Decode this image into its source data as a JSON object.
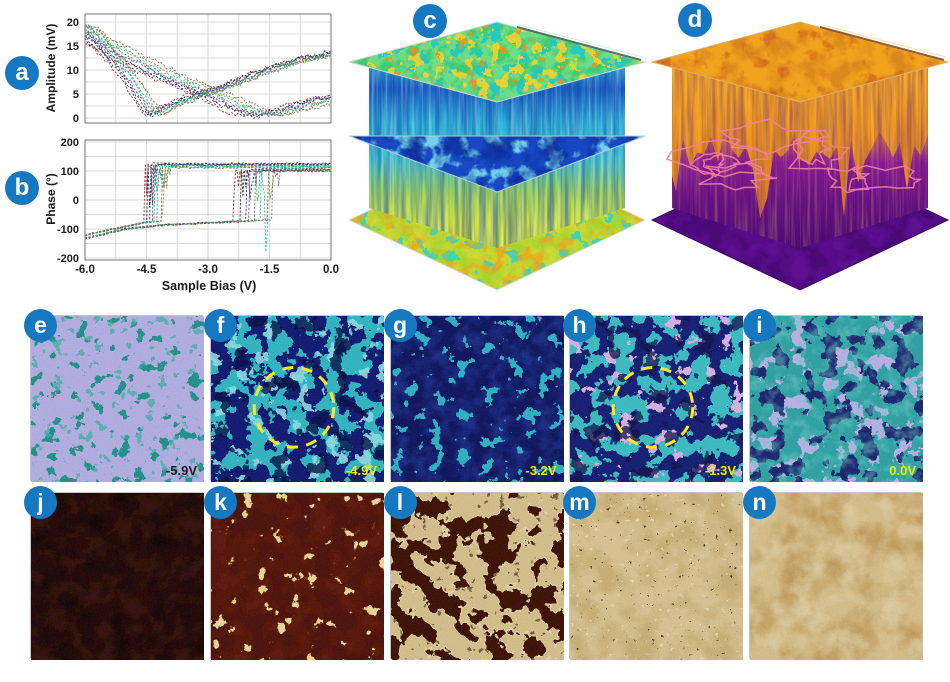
{
  "figure": {
    "type": "multi-panel scientific figure (scanning probe microscopy / PFM switching study)",
    "badge_color": "#1578c1",
    "badge_text_color": "#ffffff"
  },
  "badges": {
    "a": "a",
    "b": "b",
    "c": "c",
    "d": "d"
  },
  "chart_data": [
    {
      "id": "a",
      "type": "line",
      "panel": "a",
      "title": "",
      "xlabel": "",
      "ylabel": "Amplitude (mV)",
      "xlim": [
        -6,
        0
      ],
      "ylim": [
        0,
        20
      ],
      "xticks": [
        -6.0,
        -4.5,
        -3.0,
        -1.5,
        0.0
      ],
      "yticks": [
        0,
        5,
        10,
        15,
        20
      ],
      "grid": true,
      "legend": false,
      "n_cycles": 8,
      "series_colors": [
        "#8b2030",
        "#222222",
        "#26307f",
        "#7b3090",
        "#2f9e50",
        "#18b7b7",
        "#8f8f20",
        "#707070"
      ],
      "description": "PFM amplitude butterfly loops, ~8 overlapping bias sweep cycles",
      "branches": {
        "forward": [
          [
            -6,
            19
          ],
          [
            -5.5,
            13.5
          ],
          [
            -5,
            8.6
          ],
          [
            -4.7,
            4.4
          ],
          [
            -4.4,
            0.6
          ],
          [
            -4.1,
            2
          ],
          [
            -3.6,
            3.9
          ],
          [
            -3,
            5.6
          ],
          [
            -2.4,
            7.4
          ],
          [
            -1.8,
            9.4
          ],
          [
            -1.2,
            11.2
          ],
          [
            -0.6,
            12.5
          ],
          [
            0,
            13.6
          ]
        ],
        "reverse": [
          [
            -6,
            17.8
          ],
          [
            -5.4,
            15
          ],
          [
            -4.8,
            12.2
          ],
          [
            -4.2,
            9.6
          ],
          [
            -3.6,
            7.4
          ],
          [
            -3,
            5.4
          ],
          [
            -2.5,
            3.4
          ],
          [
            -2,
            1.4
          ],
          [
            -1.65,
            0.5
          ],
          [
            -1.3,
            1
          ],
          [
            -0.9,
            1.9
          ],
          [
            -0.5,
            2.9
          ],
          [
            0,
            4.3
          ]
        ]
      },
      "amplitude_minima_V": {
        "forward_branch": [
          -4.55,
          -4.1
        ],
        "reverse_branch": [
          -2.35,
          -1.45
        ]
      }
    },
    {
      "id": "b",
      "type": "line",
      "panel": "b",
      "title": "",
      "xlabel": "Sample Bias (V)",
      "ylabel": "Phase (°)",
      "xlim": [
        -6,
        0
      ],
      "ylim": [
        -200,
        200
      ],
      "xticks": [
        -6.0,
        -4.5,
        -3.0,
        -1.5,
        0.0
      ],
      "yticks": [
        -200,
        -100,
        0,
        100,
        200
      ],
      "grid": true,
      "legend": false,
      "n_cycles": 8,
      "series_colors": [
        "#8b2030",
        "#222222",
        "#26307f",
        "#7b3090",
        "#2f9e50",
        "#18b7b7",
        "#8f8f20",
        "#707070"
      ],
      "description": "PFM phase hysteresis loops; ~180 degree switching with two groups of coercive voltages",
      "branches": {
        "forward_low": [
          [
            -6,
            -122
          ],
          [
            -5.4,
            -102
          ],
          [
            -4.9,
            -88
          ],
          [
            -4.5,
            -77
          ],
          [
            -4.0,
            -70
          ]
        ],
        "reverse_low": [
          [
            -6,
            -133
          ],
          [
            -5,
            -100
          ],
          [
            -4,
            -85
          ],
          [
            -3,
            -79
          ],
          [
            -2,
            -72
          ],
          [
            -1.3,
            -68
          ]
        ],
        "forward_high_plateau": 119,
        "reverse_high_plateau": 103
      },
      "switch_voltage_range": {
        "forward": [
          -4.55,
          -4.1
        ],
        "reverse": [
          -2.35,
          -1.45
        ]
      }
    },
    {
      "id": "c",
      "type": "3d-slice-stack",
      "description": "3D rendering of spectroscopic data cube: three horizontal image slices (top green/teal with yellow-orange domains, middle blue, bottom yellow-green) connected by vertical cross-section walls with blue-to-green streaks",
      "colormap": [
        "#1b5fc6",
        "#2fb9dc",
        "#49d6d2",
        "#40cb72",
        "#d8e53c",
        "#ef8e1f"
      ]
    },
    {
      "id": "d",
      "type": "3d-volume",
      "description": "3D rendering of phase data cube: orange top surface, flame-like orange-to-purple switching front on walls, pink isosurface contour loops mid-volume, dark purple bottom slice",
      "colormap": [
        "#f6ac20",
        "#e8821a",
        "#8f1d96",
        "#4b0a6e"
      ],
      "contour_color": "#f07f9e"
    }
  ],
  "tiles": {
    "row1": [
      {
        "label": "e",
        "scan_label": "-5.9V",
        "scan_label_color": "#1c1c1c",
        "bg": "#b6b1e7",
        "circle": false,
        "spots": [
          {
            "color": "#1e948c",
            "freq": 0.07,
            "t": 0.655,
            "seed": 11
          },
          {
            "color": "#35b4a8",
            "freq": 0.095,
            "t": 0.67,
            "seed": 21,
            "op": 0.7
          }
        ]
      },
      {
        "label": "f",
        "scan_label": "-4.9V",
        "scan_label_color": "#f2ea00",
        "bg": "#0d1672",
        "circle": true,
        "spots": [
          {
            "color": "#2fb9c4",
            "freq": 0.052,
            "t": 0.505,
            "seed": 31
          },
          {
            "color": "#8fe2e6",
            "freq": 0.06,
            "t": 0.632,
            "seed": 32,
            "op": 0.9
          },
          {
            "color": "#060c45",
            "freq": 0.05,
            "t": 0.64,
            "seed": 33,
            "op": 0.8
          }
        ]
      },
      {
        "label": "g",
        "scan_label": "-3.2V",
        "scan_label_color": "#f2ea00",
        "bg": "#0a115e",
        "circle": false,
        "spots": [
          {
            "color": "#1b2f8f",
            "freq": 0.06,
            "t": 0.55,
            "seed": 42,
            "soft": true,
            "op": 0.8
          },
          {
            "color": "#2bb5c8",
            "freq": 0.075,
            "t": 0.645,
            "seed": 41
          }
        ]
      },
      {
        "label": "h",
        "scan_label": "-1.3V",
        "scan_label_color": "#f2ea00",
        "bg": "#111a74",
        "circle": true,
        "spots": [
          {
            "color": "#39c0c6",
            "freq": 0.05,
            "t": 0.52,
            "seed": 51
          },
          {
            "color": "#d9b4e8",
            "freq": 0.062,
            "t": 0.675,
            "seed": 52
          },
          {
            "color": "#070d49",
            "freq": 0.055,
            "t": 0.63,
            "seed": 53,
            "op": 0.75
          }
        ]
      },
      {
        "label": "i",
        "scan_label": "0.0V",
        "scan_label_color": "#f2ea00",
        "bg": "#2ba4a6",
        "circle": false,
        "spots": [
          {
            "color": "#bcb4ea",
            "freq": 0.05,
            "t": 0.6,
            "seed": 61
          },
          {
            "color": "#15206e",
            "freq": 0.055,
            "t": 0.585,
            "seed": 62
          },
          {
            "color": "#6fd0cf",
            "freq": 0.08,
            "t": 0.6,
            "seed": 63,
            "soft": true,
            "op": 0.5
          }
        ]
      }
    ],
    "row2": [
      {
        "label": "j",
        "bg": "#1d0504",
        "circle": false,
        "spots": [
          {
            "color": "#350c07",
            "freq": 0.045,
            "t": 0.5,
            "seed": 71,
            "soft": true,
            "op": 0.9
          },
          {
            "color": "#0f0202",
            "freq": 0.05,
            "t": 0.6,
            "seed": 72,
            "soft": true,
            "op": 0.8
          }
        ]
      },
      {
        "label": "k",
        "bg": "#4a0e07",
        "circle": false,
        "spots": [
          {
            "color": "#611407",
            "freq": 0.05,
            "t": 0.52,
            "seed": 81,
            "soft": true,
            "op": 0.8
          },
          {
            "color": "#9c5c10",
            "freq": 0.065,
            "t": 0.672,
            "seed": 82,
            "op": 0.55
          },
          {
            "color": "#eeda9d",
            "freq": 0.065,
            "t": 0.695,
            "seed": 82
          }
        ]
      },
      {
        "label": "l",
        "bg": "#d9c38c",
        "circle": false,
        "spots": [
          {
            "color": "#f4ecc8",
            "freq": 0.042,
            "t": 0.5,
            "seed": 91,
            "op": 0.5
          },
          {
            "color": "#3a0e06",
            "freq": 0.042,
            "t": 0.525,
            "seed": 91
          },
          {
            "color": "#2a0a04",
            "freq": 0.13,
            "t": 0.73,
            "seed": 93,
            "op": 0.55
          }
        ]
      },
      {
        "label": "m",
        "bg": "#ddc795",
        "circle": false,
        "spots": [
          {
            "color": "#cbb072",
            "freq": 0.035,
            "t": 0.53,
            "seed": 101,
            "soft": true,
            "op": 0.9
          },
          {
            "color": "#3a2a10",
            "freq": 0.22,
            "t": 0.78,
            "seed": 102,
            "op": 0.85
          },
          {
            "color": "#f4ead0",
            "freq": 0.2,
            "t": 0.77,
            "seed": 103,
            "op": 0.7
          }
        ]
      },
      {
        "label": "n",
        "bg": "#dbc28b",
        "circle": false,
        "spots": [
          {
            "color": "#c19a55",
            "freq": 0.032,
            "t": 0.56,
            "seed": 111,
            "soft": true,
            "op": 0.85
          },
          {
            "color": "#e9dcb4",
            "freq": 0.045,
            "t": 0.62,
            "seed": 112,
            "soft": true,
            "op": 0.6
          }
        ]
      }
    ],
    "dashed_circle_color": "#ffe81e"
  }
}
